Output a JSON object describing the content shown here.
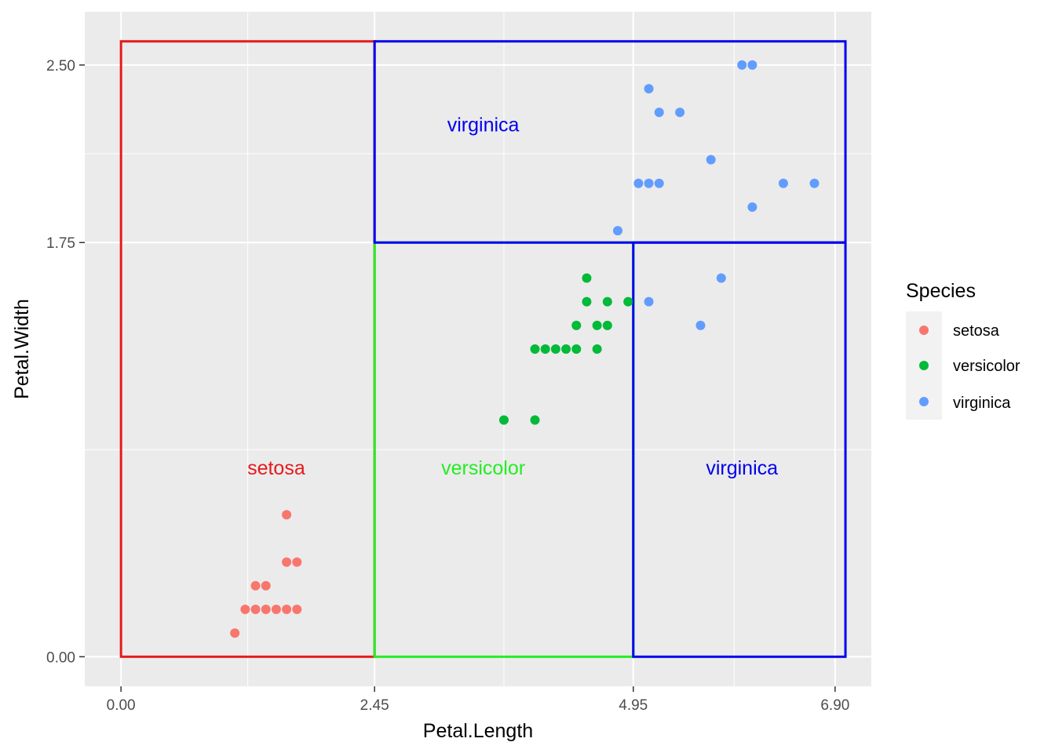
{
  "chart_data": {
    "type": "scatter",
    "xlabel": "Petal.Length",
    "ylabel": "Petal.Width",
    "xlim": [
      -0.35,
      7.25
    ],
    "ylim": [
      -0.125,
      2.725
    ],
    "x_ticks": [
      0.0,
      2.45,
      4.95,
      6.9
    ],
    "x_tick_labels": [
      "0.00",
      "2.45",
      "4.95",
      "6.90"
    ],
    "x_minor_ticks": [
      1.225,
      3.7,
      5.925
    ],
    "y_ticks": [
      0.0,
      1.75,
      2.5
    ],
    "y_tick_labels": [
      "0.00",
      "1.75",
      "2.50"
    ],
    "y_minor_ticks": [
      0.875,
      2.125
    ],
    "grid": true,
    "legend": {
      "title": "Species",
      "position": "right",
      "entries": [
        {
          "label": "setosa",
          "color": "#F8766D"
        },
        {
          "label": "versicolor",
          "color": "#00BA38"
        },
        {
          "label": "virginica",
          "color": "#619CFF"
        }
      ]
    },
    "series": [
      {
        "name": "setosa",
        "color": "#F8766D",
        "points": [
          {
            "x": 1.1,
            "y": 0.1
          },
          {
            "x": 1.2,
            "y": 0.2
          },
          {
            "x": 1.3,
            "y": 0.2
          },
          {
            "x": 1.4,
            "y": 0.2
          },
          {
            "x": 1.5,
            "y": 0.2
          },
          {
            "x": 1.6,
            "y": 0.2
          },
          {
            "x": 1.7,
            "y": 0.2
          },
          {
            "x": 1.3,
            "y": 0.3
          },
          {
            "x": 1.4,
            "y": 0.3
          },
          {
            "x": 1.6,
            "y": 0.4
          },
          {
            "x": 1.7,
            "y": 0.4
          },
          {
            "x": 1.6,
            "y": 0.6
          }
        ]
      },
      {
        "name": "versicolor",
        "color": "#00BA38",
        "points": [
          {
            "x": 3.7,
            "y": 1.0
          },
          {
            "x": 4.0,
            "y": 1.0
          },
          {
            "x": 4.0,
            "y": 1.3
          },
          {
            "x": 4.1,
            "y": 1.3
          },
          {
            "x": 4.2,
            "y": 1.3
          },
          {
            "x": 4.3,
            "y": 1.3
          },
          {
            "x": 4.4,
            "y": 1.3
          },
          {
            "x": 4.6,
            "y": 1.3
          },
          {
            "x": 4.4,
            "y": 1.4
          },
          {
            "x": 4.6,
            "y": 1.4
          },
          {
            "x": 4.7,
            "y": 1.4
          },
          {
            "x": 4.5,
            "y": 1.5
          },
          {
            "x": 4.7,
            "y": 1.5
          },
          {
            "x": 4.9,
            "y": 1.5
          },
          {
            "x": 4.5,
            "y": 1.6
          }
        ]
      },
      {
        "name": "virginica",
        "color": "#619CFF",
        "points": [
          {
            "x": 5.1,
            "y": 1.5
          },
          {
            "x": 5.6,
            "y": 1.4
          },
          {
            "x": 5.8,
            "y": 1.6
          },
          {
            "x": 4.8,
            "y": 1.8
          },
          {
            "x": 6.1,
            "y": 1.9
          },
          {
            "x": 5.0,
            "y": 2.0
          },
          {
            "x": 5.1,
            "y": 2.0
          },
          {
            "x": 5.2,
            "y": 2.0
          },
          {
            "x": 6.4,
            "y": 2.0
          },
          {
            "x": 6.7,
            "y": 2.0
          },
          {
            "x": 5.7,
            "y": 2.1
          },
          {
            "x": 5.2,
            "y": 2.3
          },
          {
            "x": 5.4,
            "y": 2.3
          },
          {
            "x": 5.1,
            "y": 2.4
          },
          {
            "x": 6.0,
            "y": 2.5
          },
          {
            "x": 6.1,
            "y": 2.5
          }
        ]
      }
    ],
    "regions": [
      {
        "name": "setosa-region",
        "x0": 0.0,
        "x1": 2.45,
        "y0": 0.0,
        "y1": 2.6,
        "color": "#E41A1C"
      },
      {
        "name": "versicolor-region",
        "x0": 2.45,
        "x1": 4.95,
        "y0": 0.0,
        "y1": 1.75,
        "color": "#22EE22"
      },
      {
        "name": "virginica-region-bottom",
        "x0": 4.95,
        "x1": 7.0,
        "y0": 0.0,
        "y1": 1.75,
        "color": "#0000EE"
      },
      {
        "name": "virginica-region-top",
        "x0": 2.45,
        "x1": 7.0,
        "y0": 1.75,
        "y1": 2.6,
        "color": "#0000EE"
      }
    ],
    "annotations": [
      {
        "text": "setosa",
        "x": 1.5,
        "y": 0.8,
        "color": "#E41A1C"
      },
      {
        "text": "versicolor",
        "x": 3.5,
        "y": 0.8,
        "color": "#22EE22"
      },
      {
        "text": "virginica",
        "x": 6.0,
        "y": 0.8,
        "color": "#0000EE"
      },
      {
        "text": "virginica",
        "x": 3.5,
        "y": 2.25,
        "color": "#0000EE"
      }
    ]
  }
}
